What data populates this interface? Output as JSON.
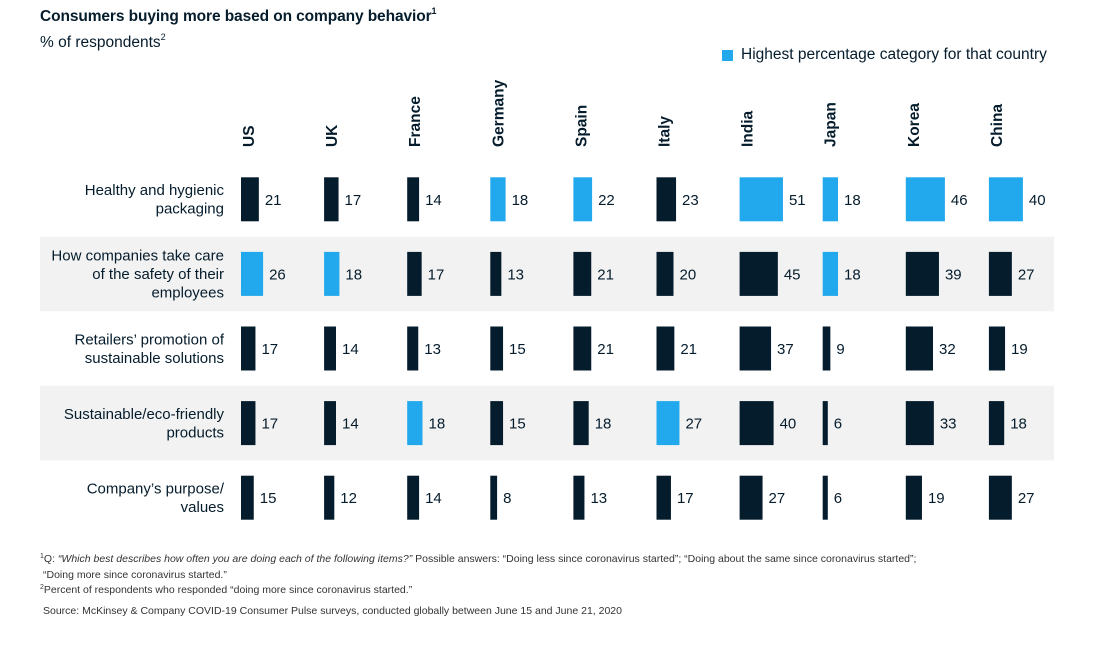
{
  "title": "Consumers buying more based on company behavior",
  "title_sup": "1",
  "subtitle": "% of respondents",
  "subtitle_sup": "2",
  "legend": {
    "label": "Highest percentage category for that country",
    "color": "#22a8ec"
  },
  "colors": {
    "default_bar": "#051c2c",
    "highlight_bar": "#22a8ec",
    "row_shade": "#f2f2f2"
  },
  "chart_data": {
    "type": "bar",
    "orientation": "horizontal small multiples",
    "title": "Consumers buying more based on company behavior",
    "ylabel": "% of respondents",
    "countries": [
      "US",
      "UK",
      "France",
      "Germany",
      "Spain",
      "Italy",
      "India",
      "Japan",
      "Korea",
      "China"
    ],
    "categories": [
      {
        "label": [
          "Healthy and hygienic",
          "packaging"
        ],
        "values": [
          21,
          17,
          14,
          18,
          22,
          23,
          51,
          18,
          46,
          40
        ]
      },
      {
        "label": [
          "How companies take care",
          "of the safety of their",
          "employees"
        ],
        "values": [
          26,
          18,
          17,
          13,
          21,
          20,
          45,
          18,
          39,
          27
        ]
      },
      {
        "label": [
          "Retailers’ promotion of",
          "sustainable solutions"
        ],
        "values": [
          17,
          14,
          13,
          15,
          21,
          21,
          37,
          9,
          32,
          19
        ]
      },
      {
        "label": [
          "Sustainable/eco-friendly",
          "products"
        ],
        "values": [
          17,
          14,
          18,
          15,
          18,
          27,
          40,
          6,
          33,
          18
        ]
      },
      {
        "label": [
          "Company’s purpose/",
          "values"
        ],
        "values": [
          15,
          12,
          14,
          8,
          13,
          17,
          27,
          6,
          19,
          27
        ]
      }
    ],
    "highlight": {
      "US": 1,
      "UK": 1,
      "France": 3,
      "Germany": 0,
      "Spain": 0,
      "Italy": 3,
      "India": 0,
      "Japan": [
        0,
        1
      ],
      "Korea": 0,
      "China": 0
    },
    "legend": "Highest percentage category for that country"
  },
  "footnotes": {
    "fn1_sup": "1",
    "fn1_prefix": "Q: ",
    "fn1_question": "“Which best describes how often you are doing each of the following items?”",
    "fn1_rest": " Possible answers: “Doing less since coronavirus started”; “Doing about the same since coronavirus started”;",
    "fn1_cont": "“Doing more since coronavirus started.”",
    "fn2_sup": "2",
    "fn2": "Percent of respondents who responded “doing more since coronavirus started.”",
    "source": "Source: McKinsey & Company COVID-19 Consumer Pulse surveys, conducted globally between June 15 and June 21, 2020"
  }
}
